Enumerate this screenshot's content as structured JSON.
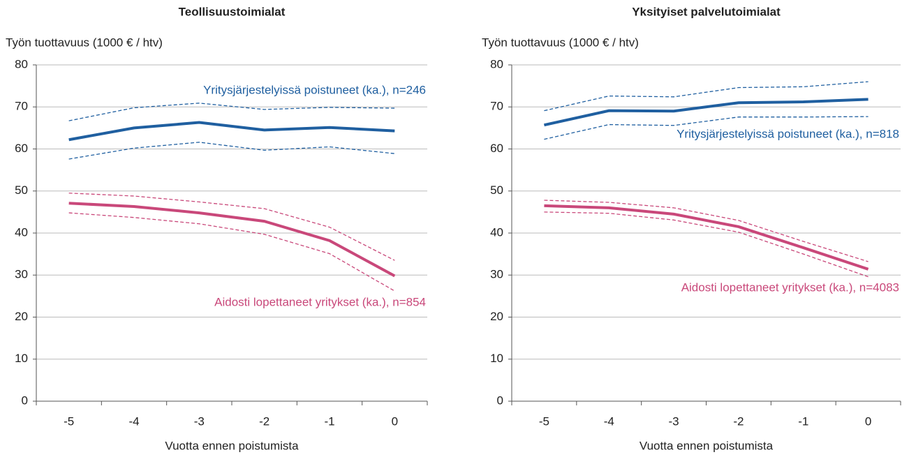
{
  "chart_data": [
    {
      "type": "line",
      "title": "Teollisuustoimialat",
      "y_label": "Työn tuottavuus (1000 € / htv)",
      "x_label": "Vuotta ennen poistumista",
      "categories": [
        "-5",
        "-4",
        "-3",
        "-2",
        "-1",
        "0"
      ],
      "ylim": [
        0,
        80
      ],
      "yticks": [
        0,
        10,
        20,
        30,
        40,
        50,
        60,
        70,
        80
      ],
      "grid": true,
      "series": [
        {
          "name": "Yritysjärjestelyissä poistuneet (ka.), n=246",
          "color": "#1f5fa0",
          "values": [
            62.2,
            65.0,
            66.3,
            64.5,
            65.1,
            64.3
          ],
          "upper": [
            66.7,
            69.8,
            70.9,
            69.4,
            69.9,
            69.7
          ],
          "lower": [
            57.6,
            60.2,
            61.6,
            59.7,
            60.5,
            58.9
          ]
        },
        {
          "name": "Aidosti lopettaneet yritykset (ka.), n=854",
          "color": "#c9487a",
          "values": [
            47.1,
            46.3,
            44.8,
            42.8,
            38.2,
            29.8
          ],
          "upper": [
            49.5,
            48.8,
            47.4,
            45.8,
            41.4,
            33.5
          ],
          "lower": [
            44.8,
            43.7,
            42.2,
            39.7,
            35.1,
            26.2
          ]
        }
      ]
    },
    {
      "type": "line",
      "title": "Yksityiset palvelutoimialat",
      "y_label": "Työn tuottavuus (1000 € / htv)",
      "x_label": "Vuotta ennen poistumista",
      "categories": [
        "-5",
        "-4",
        "-3",
        "-2",
        "-1",
        "0"
      ],
      "ylim": [
        0,
        80
      ],
      "yticks": [
        0,
        10,
        20,
        30,
        40,
        50,
        60,
        70,
        80
      ],
      "grid": true,
      "series": [
        {
          "name": "Yritysjärjestelyissä poistuneet (ka.), n=818",
          "color": "#1f5fa0",
          "values": [
            65.7,
            69.1,
            69.0,
            71.0,
            71.2,
            71.8
          ],
          "upper": [
            69.1,
            72.6,
            72.4,
            74.6,
            74.8,
            76.0
          ],
          "lower": [
            62.3,
            65.8,
            65.6,
            67.6,
            67.6,
            67.7
          ]
        },
        {
          "name": "Aidosti lopettaneet yritykset (ka.), n=4083",
          "color": "#c9487a",
          "values": [
            46.5,
            46.0,
            44.5,
            41.5,
            36.5,
            31.4
          ],
          "upper": [
            47.8,
            47.3,
            46.0,
            43.0,
            38.0,
            33.2
          ],
          "lower": [
            45.0,
            44.7,
            43.1,
            40.2,
            35.0,
            29.6
          ]
        }
      ]
    }
  ]
}
